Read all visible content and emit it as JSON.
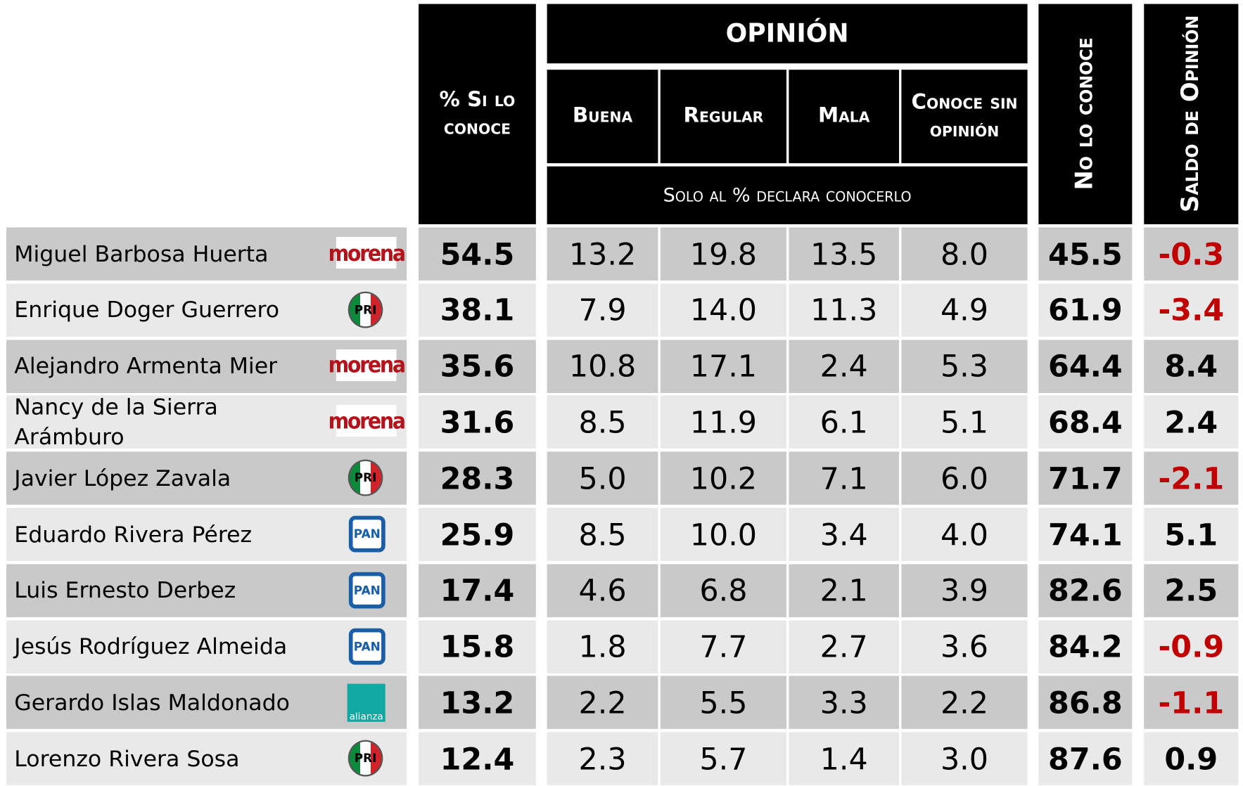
{
  "header": {
    "known": "% Si lo conoce",
    "opinion": "OPINIÓN",
    "columns": [
      "Buena",
      "Regular",
      "Mala",
      "Conoce sin opinión"
    ],
    "note": "Solo al % declara conocerlo",
    "unknown": "No lo conoce",
    "balance": "Saldo de Opinión"
  },
  "table": {
    "rows": [
      {
        "name": "Miguel Barbosa Huerta",
        "party": "morena",
        "values": [
          "54.5",
          "13.2",
          "19.8",
          "13.5",
          "8.0",
          "45.5",
          "-0.3"
        ]
      },
      {
        "name": "Enrique Doger Guerrero",
        "party": "PRI",
        "values": [
          "38.1",
          "7.9",
          "14.0",
          "11.3",
          "4.9",
          "61.9",
          "-3.4"
        ]
      },
      {
        "name": "Alejandro Armenta Mier",
        "party": "morena",
        "values": [
          "35.6",
          "10.8",
          "17.1",
          "2.4",
          "5.3",
          "64.4",
          "8.4"
        ]
      },
      {
        "name": "Nancy de la Sierra Arámburo",
        "party": "morena",
        "values": [
          "31.6",
          "8.5",
          "11.9",
          "6.1",
          "5.1",
          "68.4",
          "2.4"
        ]
      },
      {
        "name": "Javier López Zavala",
        "party": "PRI",
        "values": [
          "28.3",
          "5.0",
          "10.2",
          "7.1",
          "6.0",
          "71.7",
          "-2.1"
        ]
      },
      {
        "name": "Eduardo Rivera Pérez",
        "party": "PAN",
        "values": [
          "25.9",
          "8.5",
          "10.0",
          "3.4",
          "4.0",
          "74.1",
          "5.1"
        ]
      },
      {
        "name": "Luis Ernesto Derbez",
        "party": "PAN",
        "values": [
          "17.4",
          "4.6",
          "6.8",
          "2.1",
          "3.9",
          "82.6",
          "2.5"
        ]
      },
      {
        "name": "Jesús Rodríguez Almeida",
        "party": "PAN",
        "values": [
          "15.8",
          "1.8",
          "7.7",
          "2.7",
          "3.6",
          "84.2",
          "-0.9"
        ]
      },
      {
        "name": "Gerardo Islas Maldonado",
        "party": "alianza",
        "values": [
          "13.2",
          "2.2",
          "5.5",
          "3.3",
          "2.2",
          "86.8",
          "-1.1"
        ]
      },
      {
        "name": "Lorenzo Rivera Sosa",
        "party": "PRI",
        "values": [
          "12.4",
          "2.3",
          "5.7",
          "1.4",
          "3.0",
          "87.6",
          "0.9"
        ]
      }
    ]
  }
}
